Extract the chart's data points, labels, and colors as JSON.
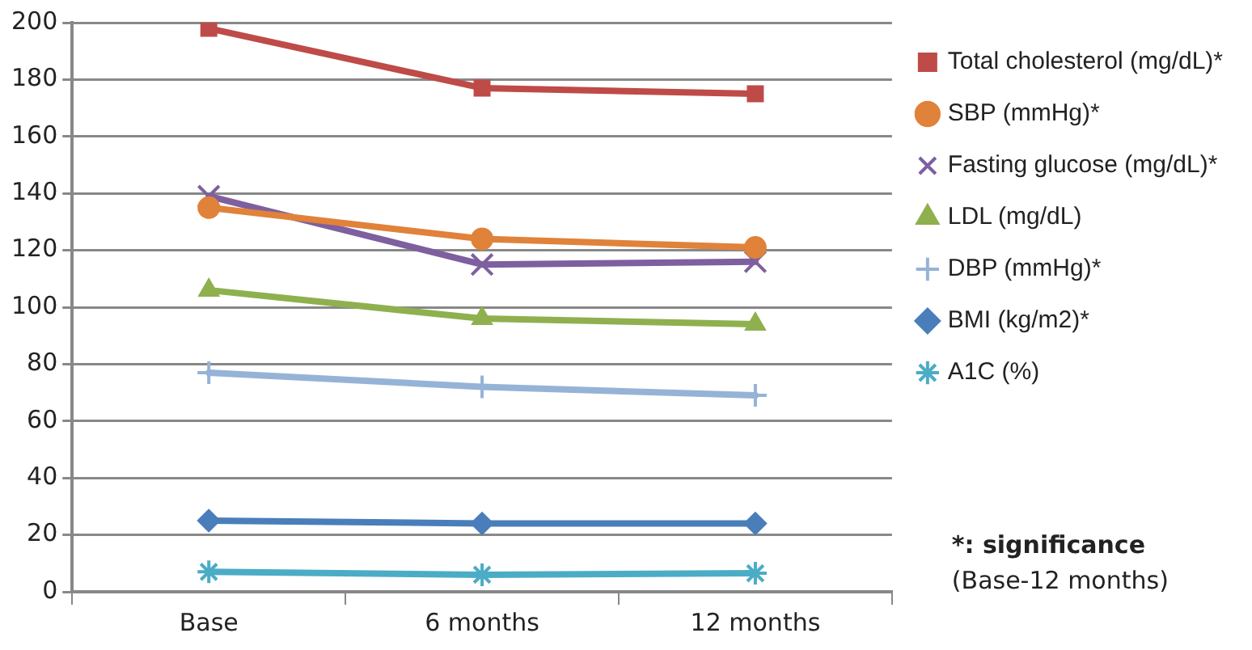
{
  "chart_data": {
    "type": "line",
    "categories": [
      "Base",
      "6 months",
      "12 months"
    ],
    "ylim": [
      0,
      200
    ],
    "yticks": [
      0,
      20,
      40,
      60,
      80,
      100,
      120,
      140,
      160,
      180,
      200
    ],
    "grid": "y",
    "legend": "right",
    "series": [
      {
        "name": "Total cholesterol (mg/dL)*",
        "color": "#be4b48",
        "marker": "square",
        "values": [
          198,
          177,
          175
        ]
      },
      {
        "name": "SBP (mmHg)*",
        "color": "#e0823a",
        "marker": "circle",
        "values": [
          135,
          124,
          121
        ]
      },
      {
        "name": "Fasting glucose (mg/dL)*",
        "color": "#7e5fa0",
        "marker": "x",
        "values": [
          139,
          115,
          116
        ]
      },
      {
        "name": "LDL (mg/dL)",
        "color": "#8fb04e",
        "marker": "triangle",
        "values": [
          106,
          96,
          94
        ]
      },
      {
        "name": "DBP (mmHg)*",
        "color": "#95b3d7",
        "marker": "plus",
        "values": [
          77,
          72,
          69
        ]
      },
      {
        "name": "BMI (kg/m2)*",
        "color": "#4a7ebb",
        "marker": "diamond",
        "values": [
          25,
          24,
          24
        ]
      },
      {
        "name": "A1C (%)",
        "color": "#4bacc6",
        "marker": "cross",
        "values": [
          7,
          6,
          6.5
        ]
      }
    ],
    "annotations": [
      "*: significance",
      "(Base-12 months)"
    ]
  }
}
